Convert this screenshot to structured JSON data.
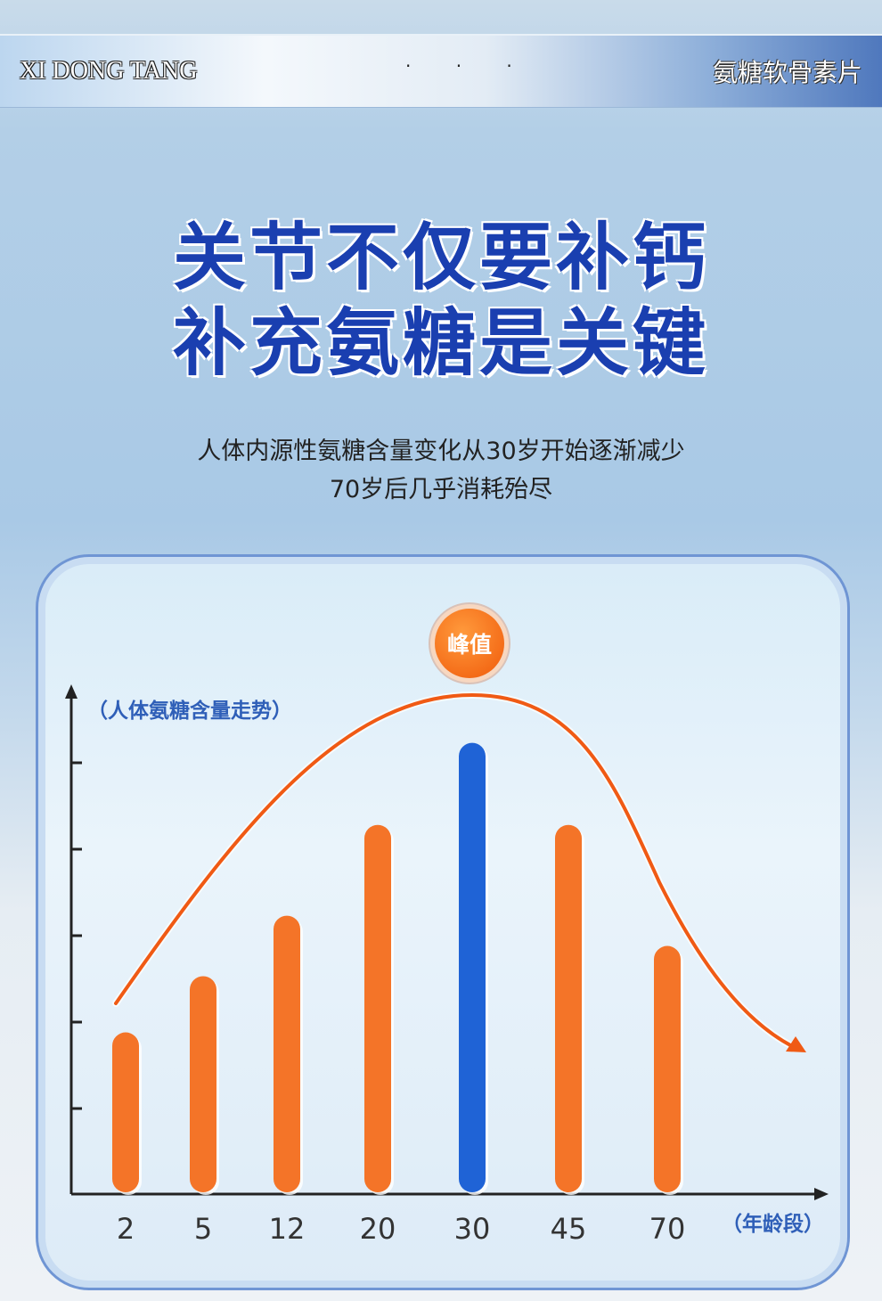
{
  "banner": {
    "brand": "XI DONG TANG",
    "dots": "· · ·",
    "product": "氨糖软骨素片"
  },
  "headline": {
    "line1": "关节不仅要补钙",
    "line2": "补充氨糖是关键"
  },
  "subtitle": {
    "line1": "人体内源性氨糖含量变化从30岁开始逐渐减少",
    "line2": "70岁后几乎消耗殆尽"
  },
  "chart_data": {
    "type": "bar",
    "ylabel": "（人体氨糖含量走势）",
    "xlabel": "（年龄段）",
    "categories": [
      "2",
      "5",
      "12",
      "20",
      "30",
      "45",
      "70"
    ],
    "values": [
      1.85,
      2.5,
      3.2,
      4.25,
      5.2,
      4.25,
      2.85
    ],
    "ylim": [
      0,
      5.8
    ],
    "peak_label": "峰值",
    "peak_category": "30",
    "trend_curve": true,
    "grid": false,
    "colors": {
      "bar": "#f47428",
      "peak_bar": "#1f63d6",
      "curve": "#f05a14",
      "axis": "#222222"
    }
  }
}
